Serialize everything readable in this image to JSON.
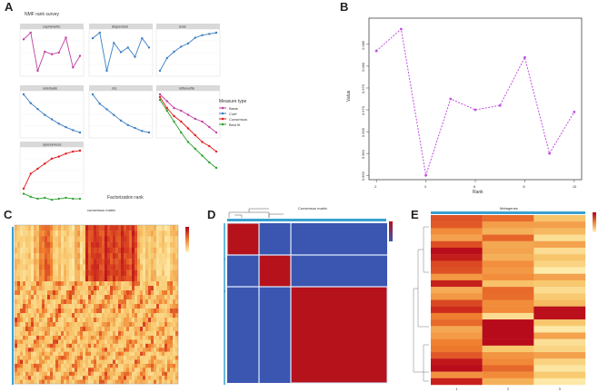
{
  "panels": {
    "A": "A",
    "B": "B",
    "C": "C",
    "D": "D",
    "E": "E"
  },
  "colors": {
    "rank": "#c040a0",
    "rss": "#3b7fc4",
    "cophenetic": "#e41a1c",
    "dispersion": "#2ca02c",
    "heat_low": "#fff6c0",
    "heat_mid": "#f08030",
    "heat_high": "#b0001a",
    "cons_high": "#b5121b",
    "cons_low": "#3a56b0"
  },
  "panelA": {
    "title": "NMF rank survey",
    "xlabel": "Factorization rank",
    "legend_title": "Measure type",
    "legend_items": [
      "Basis",
      "Coef",
      "Consensus",
      "Best fit"
    ]
  },
  "chart_data": [
    {
      "type": "line",
      "panel": "A",
      "title": "NMF rank survey",
      "xlabel": "Factorization rank",
      "x": [
        2,
        3,
        4,
        5,
        6,
        7,
        8,
        9,
        10
      ],
      "series": [
        {
          "name": "cophenetic",
          "values": [
            0.99,
            0.998,
            0.952,
            0.975,
            0.972,
            0.974,
            0.992,
            0.956,
            0.97
          ]
        },
        {
          "name": "dispersion",
          "values": [
            0.6,
            0.66,
            0.25,
            0.55,
            0.45,
            0.5,
            0.4,
            0.6,
            0.5
          ]
        },
        {
          "name": "evar",
          "values": [
            0.2,
            0.4,
            0.5,
            0.58,
            0.63,
            0.72,
            0.76,
            0.78,
            0.8
          ]
        },
        {
          "name": "residuals",
          "values": [
            3200,
            2900,
            2700,
            2500,
            2350,
            2200,
            2080,
            1980,
            1900
          ]
        },
        {
          "name": "rss",
          "values": [
            250,
            225,
            210,
            195,
            180,
            168,
            160,
            152,
            148
          ]
        },
        {
          "name": "silhouette",
          "values": [
            0.9,
            0.85,
            0.8,
            0.78,
            0.75,
            0.72,
            0.7,
            0.66,
            0.62
          ]
        },
        {
          "name": "sparseness",
          "values": [
            0.4,
            0.55,
            0.6,
            0.65,
            0.7,
            0.72,
            0.75,
            0.77,
            0.78
          ]
        }
      ]
    },
    {
      "type": "line",
      "panel": "B",
      "xlabel": "Rank",
      "ylabel": "Value",
      "x": [
        2,
        3,
        4,
        5,
        6,
        7,
        8,
        9,
        10
      ],
      "values": [
        0.9835,
        0.9885,
        0.955,
        0.9725,
        0.97,
        0.971,
        0.982,
        0.96,
        0.9695
      ],
      "ylim": [
        0.955,
        0.99
      ],
      "yticks": [
        "0.955",
        "0.960",
        "0.965",
        "0.970",
        "0.975",
        "0.980",
        "0.985"
      ],
      "xticks": [
        "2",
        "4",
        "6",
        "8",
        "10"
      ]
    },
    {
      "type": "heatmap",
      "panel": "C",
      "title": "consensus matrix",
      "groups": 3
    },
    {
      "type": "heatmap",
      "panel": "D",
      "title": "Consensus matrix",
      "blocks": [
        "1",
        "2",
        "3"
      ]
    },
    {
      "type": "heatmap",
      "panel": "E",
      "title": "Metagenes",
      "columns": [
        "1",
        "2",
        "3"
      ]
    }
  ]
}
